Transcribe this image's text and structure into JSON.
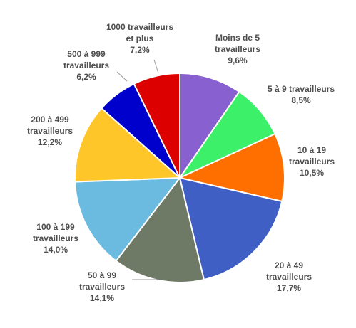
{
  "chart_data": {
    "type": "pie",
    "start_angle_deg": 0,
    "direction": "clockwise",
    "slices": [
      {
        "lines": [
          "Moins de 5",
          "travailleurs",
          "9,6%"
        ],
        "value": 9.6,
        "color": "#8860d0"
      },
      {
        "lines": [
          "5 à 9 travailleurs",
          "8,5%"
        ],
        "value": 8.5,
        "color": "#3df06a"
      },
      {
        "lines": [
          "10 à 19",
          "travailleurs",
          "10,5%"
        ],
        "value": 10.5,
        "color": "#ff6f00"
      },
      {
        "lines": [
          "20 à 49",
          "travailleurs",
          "17,7%"
        ],
        "value": 17.7,
        "color": "#3f5fc4"
      },
      {
        "lines": [
          "50 à 99",
          "travailleurs",
          "14,1%"
        ],
        "value": 14.1,
        "color": "#6f7a66"
      },
      {
        "lines": [
          "100 à 199",
          "travailleurs",
          "14,0%"
        ],
        "value": 14.0,
        "color": "#6bbbe0"
      },
      {
        "lines": [
          "200 à 499",
          "travailleurs",
          "12,2%"
        ],
        "value": 12.2,
        "color": "#ffc62a"
      },
      {
        "lines": [
          "500 à 999",
          "travailleurs",
          "6,2%"
        ],
        "value": 6.2,
        "color": "#0000cc"
      },
      {
        "lines": [
          "1000 travailleurs",
          "et plus",
          "7,2%"
        ],
        "value": 7.2,
        "color": "#dd0000"
      }
    ]
  }
}
